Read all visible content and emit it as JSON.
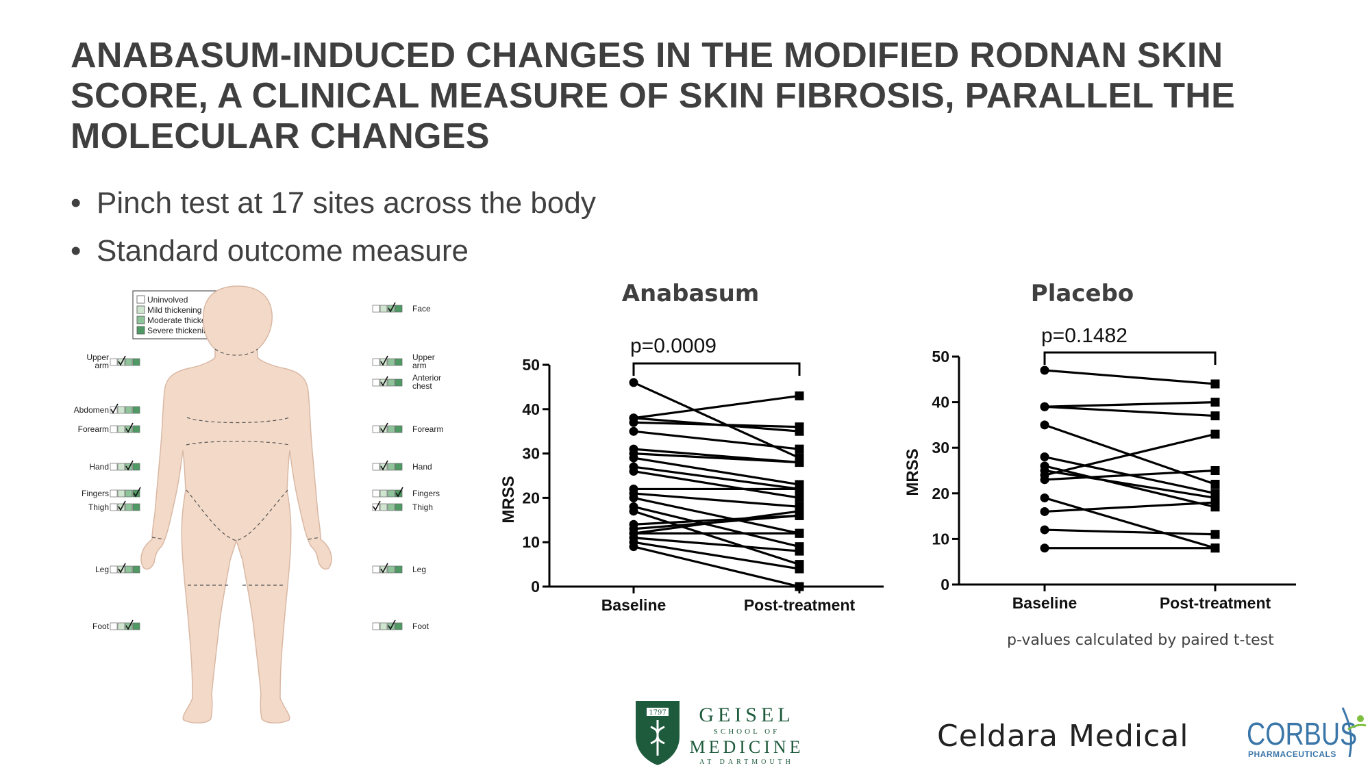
{
  "slide": {
    "title": "ANABASUM-INDUCED CHANGES IN THE MODIFIED RODNAN SKIN SCORE, A CLINICAL MEASURE OF SKIN FIBROSIS, PARALLEL THE MOLECULAR CHANGES",
    "bullets": [
      "Pinch test at 17 sites across the body",
      "Standard outcome measure"
    ],
    "footnote": "p-values calculated by paired t-test"
  },
  "body_diagram": {
    "legend": [
      "Uninvolved",
      "Mild thickening",
      "Moderate thickening",
      "Severe thickening"
    ],
    "legend_colors": [
      "#ffffff",
      "#cfe5cf",
      "#8fc49a",
      "#4f9a64"
    ],
    "skin_color": "#f3d9c7",
    "left_sites": [
      {
        "label": "Upper arm",
        "level": 1
      },
      {
        "label": "Abdomen",
        "level": 0
      },
      {
        "label": "Forearm",
        "level": 2
      },
      {
        "label": "Hand",
        "level": 2
      },
      {
        "label": "Fingers",
        "level": 3
      },
      {
        "label": "Thigh",
        "level": 1
      },
      {
        "label": "Leg",
        "level": 1
      },
      {
        "label": "Foot",
        "level": 2
      }
    ],
    "right_sites": [
      {
        "label": "Face",
        "level": 2
      },
      {
        "label": "Upper arm",
        "level": 1
      },
      {
        "label": "Anterior chest",
        "level": 1
      },
      {
        "label": "Forearm",
        "level": 1
      },
      {
        "label": "Hand",
        "level": 1
      },
      {
        "label": "Fingers",
        "level": 3
      },
      {
        "label": "Thigh",
        "level": 0
      },
      {
        "label": "Leg",
        "level": 1
      },
      {
        "label": "Foot",
        "level": 2
      }
    ]
  },
  "chart_data": [
    {
      "type": "line",
      "title": "Anabasum",
      "ylabel": "MRSS",
      "categories": [
        "Baseline",
        "Post-treatment"
      ],
      "ylim": [
        0,
        50
      ],
      "yticks": [
        0,
        10,
        20,
        30,
        40,
        50
      ],
      "annotation": "p=0.0009",
      "pairs": [
        [
          46,
          29
        ],
        [
          38,
          43
        ],
        [
          38,
          35
        ],
        [
          37,
          36
        ],
        [
          35,
          31
        ],
        [
          31,
          28
        ],
        [
          30,
          28
        ],
        [
          29,
          23
        ],
        [
          27,
          22
        ],
        [
          26,
          20
        ],
        [
          22,
          22
        ],
        [
          21,
          18
        ],
        [
          20,
          12
        ],
        [
          18,
          9
        ],
        [
          17,
          5
        ],
        [
          14,
          16
        ],
        [
          13,
          16
        ],
        [
          12,
          17
        ],
        [
          12,
          12
        ],
        [
          11,
          8
        ],
        [
          10,
          4
        ],
        [
          9,
          0
        ]
      ]
    },
    {
      "type": "line",
      "title": "Placebo",
      "ylabel": "MRSS",
      "categories": [
        "Baseline",
        "Post-treatment"
      ],
      "ylim": [
        0,
        50
      ],
      "yticks": [
        0,
        10,
        20,
        30,
        40,
        50
      ],
      "annotation": "p=0.1482",
      "pairs": [
        [
          47,
          44
        ],
        [
          39,
          40
        ],
        [
          39,
          37
        ],
        [
          35,
          22
        ],
        [
          28,
          20
        ],
        [
          26,
          17
        ],
        [
          25,
          19
        ],
        [
          24,
          33
        ],
        [
          23,
          25
        ],
        [
          19,
          8
        ],
        [
          16,
          18
        ],
        [
          12,
          11
        ],
        [
          8,
          8
        ]
      ]
    }
  ],
  "logos": {
    "geisel": {
      "lines": [
        "GEISEL",
        "SCHOOL OF",
        "MEDICINE",
        "AT DARTMOUTH"
      ],
      "year": "1797",
      "color": "#1e5a3c"
    },
    "celdara": "Celdara Medical",
    "corbus": {
      "name": "CORBUS",
      "sub": "PHARMACEUTICALS",
      "color": "#3b76a8"
    }
  }
}
